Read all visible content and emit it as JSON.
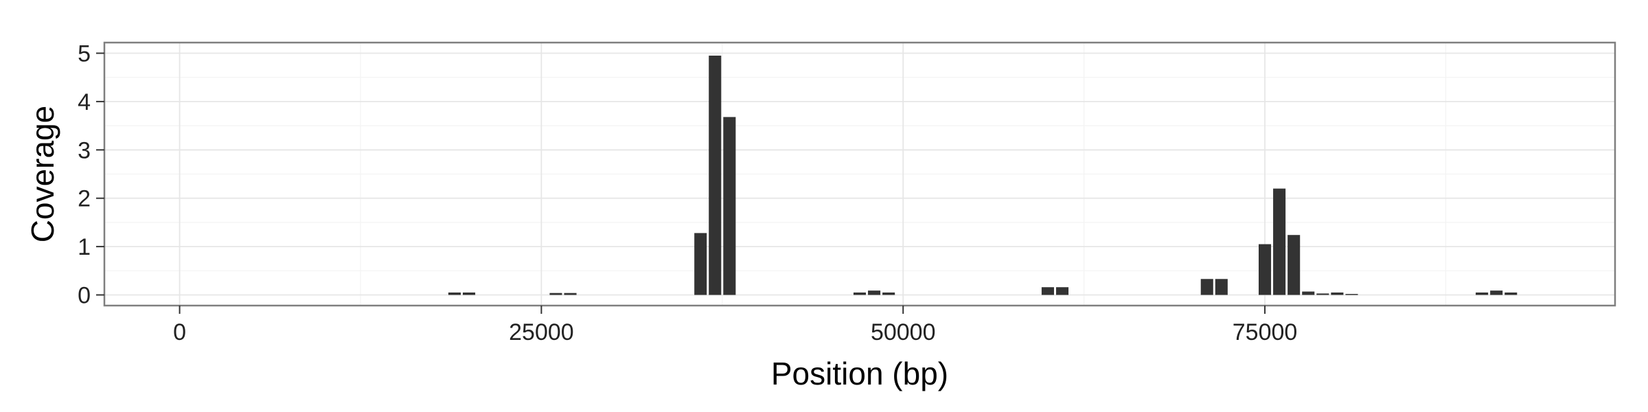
{
  "chart_data": {
    "type": "bar",
    "title": "",
    "xlabel": "Position (bp)",
    "ylabel": "Coverage",
    "xlim": [
      -5200,
      99200
    ],
    "ylim": [
      -0.22,
      5.22
    ],
    "xticks": [
      0,
      25000,
      50000,
      75000
    ],
    "yticks": [
      0,
      1,
      2,
      3,
      4,
      5
    ],
    "grid": true,
    "legend": "none",
    "bar_color": "#333333",
    "bin_width": 1000,
    "bars": [
      {
        "x": 19000,
        "y": 0.05
      },
      {
        "x": 20000,
        "y": 0.05
      },
      {
        "x": 26000,
        "y": 0.04
      },
      {
        "x": 27000,
        "y": 0.04
      },
      {
        "x": 36000,
        "y": 1.28
      },
      {
        "x": 37000,
        "y": 4.95
      },
      {
        "x": 38000,
        "y": 3.68
      },
      {
        "x": 47000,
        "y": 0.05
      },
      {
        "x": 48000,
        "y": 0.09
      },
      {
        "x": 49000,
        "y": 0.05
      },
      {
        "x": 60000,
        "y": 0.16
      },
      {
        "x": 61000,
        "y": 0.16
      },
      {
        "x": 71000,
        "y": 0.33
      },
      {
        "x": 72000,
        "y": 0.33
      },
      {
        "x": 75000,
        "y": 1.05
      },
      {
        "x": 76000,
        "y": 2.2
      },
      {
        "x": 77000,
        "y": 1.24
      },
      {
        "x": 78000,
        "y": 0.07
      },
      {
        "x": 79000,
        "y": 0.03
      },
      {
        "x": 80000,
        "y": 0.05
      },
      {
        "x": 81000,
        "y": 0.02
      },
      {
        "x": 90000,
        "y": 0.05
      },
      {
        "x": 91000,
        "y": 0.09
      },
      {
        "x": 92000,
        "y": 0.05
      }
    ]
  }
}
